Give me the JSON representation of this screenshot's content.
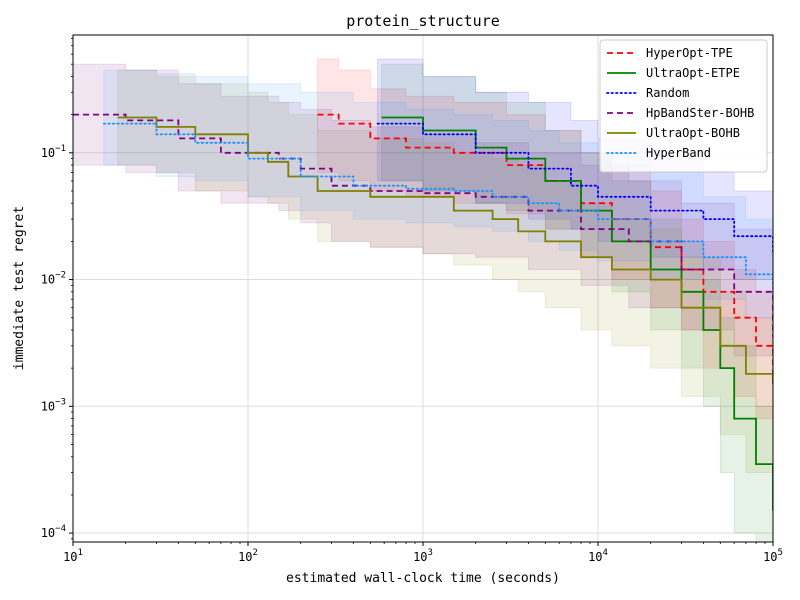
{
  "chart_data": {
    "type": "line",
    "title": "protein_structure",
    "xlabel": "estimated wall-clock time (seconds)",
    "ylabel": "immediate test regret",
    "x_scale": "log",
    "y_scale": "log",
    "xlim": [
      10,
      100000
    ],
    "ylim": [
      8.5e-05,
      0.85
    ],
    "grid": true,
    "legend_position": "top-right",
    "x_ticks": [
      {
        "value": 10,
        "base": "10",
        "exp": "1"
      },
      {
        "value": 100,
        "base": "10",
        "exp": "2"
      },
      {
        "value": 1000,
        "base": "10",
        "exp": "3"
      },
      {
        "value": 10000,
        "base": "10",
        "exp": "4"
      },
      {
        "value": 100000,
        "base": "10",
        "exp": "5"
      }
    ],
    "y_ticks": [
      {
        "value": 0.0001,
        "base": "10",
        "exp": "−4"
      },
      {
        "value": 0.001,
        "base": "10",
        "exp": "−3"
      },
      {
        "value": 0.01,
        "base": "10",
        "exp": "−2"
      },
      {
        "value": 0.1,
        "base": "10",
        "exp": "−1"
      }
    ],
    "series": [
      {
        "name": "HyperOpt-TPE",
        "color": "#ff0000",
        "dash": "dashed",
        "x": [
          250,
          330,
          500,
          800,
          1500,
          3000,
          5000,
          8000,
          12000,
          20000,
          30000,
          40000,
          60000,
          80000,
          100000
        ],
        "y": [
          0.2,
          0.17,
          0.13,
          0.11,
          0.1,
          0.08,
          0.06,
          0.04,
          0.03,
          0.018,
          0.012,
          0.008,
          0.005,
          0.003,
          0.0015
        ],
        "upper": [
          0.55,
          0.45,
          0.32,
          0.28,
          0.25,
          0.2,
          0.15,
          0.1,
          0.08,
          0.05,
          0.03,
          0.02,
          0.012,
          0.008,
          0.005
        ],
        "lower": [
          0.07,
          0.06,
          0.05,
          0.045,
          0.04,
          0.033,
          0.025,
          0.015,
          0.01,
          0.006,
          0.004,
          0.002,
          0.0012,
          0.0008,
          0.0004
        ]
      },
      {
        "name": "UltraOpt-ETPE",
        "color": "#008000",
        "dash": "solid",
        "x": [
          580,
          1000,
          2000,
          3000,
          5000,
          8000,
          12000,
          20000,
          30000,
          40000,
          50000,
          60000,
          80000,
          100000
        ],
        "y": [
          0.19,
          0.15,
          0.11,
          0.09,
          0.06,
          0.035,
          0.02,
          0.012,
          0.008,
          0.004,
          0.002,
          0.0008,
          0.00035,
          0.00015
        ],
        "upper": [
          0.5,
          0.4,
          0.3,
          0.25,
          0.15,
          0.1,
          0.06,
          0.03,
          0.02,
          0.01,
          0.005,
          0.003,
          0.001,
          0.0006
        ],
        "lower": [
          0.06,
          0.05,
          0.04,
          0.035,
          0.025,
          0.015,
          0.008,
          0.004,
          0.002,
          0.001,
          0.0003,
          0.0001,
          8.5e-05,
          8.5e-05
        ]
      },
      {
        "name": "Random",
        "color": "#0000ff",
        "dash": "dotted",
        "x": [
          550,
          1000,
          2000,
          4000,
          7000,
          10000,
          20000,
          40000,
          60000,
          100000
        ],
        "y": [
          0.17,
          0.14,
          0.1,
          0.075,
          0.055,
          0.045,
          0.035,
          0.03,
          0.022,
          0.016
        ],
        "upper": [
          0.55,
          0.4,
          0.3,
          0.25,
          0.18,
          0.13,
          0.1,
          0.07,
          0.05,
          0.04
        ],
        "lower": [
          0.06,
          0.05,
          0.04,
          0.03,
          0.025,
          0.02,
          0.015,
          0.012,
          0.01,
          0.007
        ]
      },
      {
        "name": "HpBandSter-BOHB",
        "color": "#800080",
        "dash": "dashed",
        "x": [
          10,
          20,
          40,
          70,
          150,
          200,
          300,
          500,
          1000,
          2000,
          4000,
          8000,
          15000,
          30000,
          60000,
          100000
        ],
        "y": [
          0.2,
          0.18,
          0.13,
          0.1,
          0.09,
          0.075,
          0.055,
          0.05,
          0.048,
          0.045,
          0.035,
          0.025,
          0.02,
          0.012,
          0.008,
          0.0035
        ],
        "upper": [
          0.5,
          0.45,
          0.35,
          0.28,
          0.25,
          0.22,
          0.18,
          0.16,
          0.14,
          0.12,
          0.1,
          0.08,
          0.06,
          0.04,
          0.025,
          0.012
        ],
        "lower": [
          0.08,
          0.07,
          0.05,
          0.04,
          0.035,
          0.028,
          0.02,
          0.018,
          0.016,
          0.015,
          0.012,
          0.009,
          0.006,
          0.004,
          0.0025,
          0.001
        ]
      },
      {
        "name": "UltraOpt-BOHB",
        "color": "#808000",
        "dash": "solid",
        "x": [
          18,
          30,
          50,
          100,
          130,
          170,
          250,
          500,
          1000,
          1500,
          2500,
          3500,
          5000,
          8000,
          12000,
          20000,
          30000,
          50000,
          70000,
          100000
        ],
        "y": [
          0.19,
          0.16,
          0.14,
          0.1,
          0.085,
          0.065,
          0.05,
          0.045,
          0.045,
          0.035,
          0.03,
          0.024,
          0.02,
          0.015,
          0.012,
          0.01,
          0.006,
          0.003,
          0.0018,
          0.0015
        ],
        "upper": [
          0.45,
          0.4,
          0.35,
          0.3,
          0.25,
          0.2,
          0.15,
          0.13,
          0.12,
          0.1,
          0.09,
          0.08,
          0.06,
          0.04,
          0.03,
          0.025,
          0.015,
          0.008,
          0.005,
          0.004
        ],
        "lower": [
          0.08,
          0.07,
          0.05,
          0.045,
          0.04,
          0.03,
          0.02,
          0.018,
          0.016,
          0.013,
          0.01,
          0.008,
          0.006,
          0.004,
          0.003,
          0.002,
          0.0012,
          0.0006,
          0.0003,
          0.0002
        ]
      },
      {
        "name": "HyperBand",
        "color": "#1e90ff",
        "dash": "dotted",
        "x": [
          15,
          30,
          50,
          100,
          200,
          400,
          800,
          1500,
          2500,
          4000,
          6000,
          10000,
          20000,
          40000,
          70000,
          100000
        ],
        "y": [
          0.17,
          0.14,
          0.12,
          0.09,
          0.065,
          0.055,
          0.052,
          0.05,
          0.045,
          0.04,
          0.035,
          0.03,
          0.02,
          0.015,
          0.011,
          0.008
        ],
        "upper": [
          0.45,
          0.42,
          0.4,
          0.35,
          0.3,
          0.25,
          0.22,
          0.2,
          0.18,
          0.15,
          0.12,
          0.1,
          0.07,
          0.045,
          0.03,
          0.02
        ],
        "lower": [
          0.08,
          0.065,
          0.06,
          0.045,
          0.035,
          0.03,
          0.028,
          0.026,
          0.024,
          0.02,
          0.017,
          0.014,
          0.01,
          0.007,
          0.005,
          0.004
        ]
      }
    ]
  }
}
